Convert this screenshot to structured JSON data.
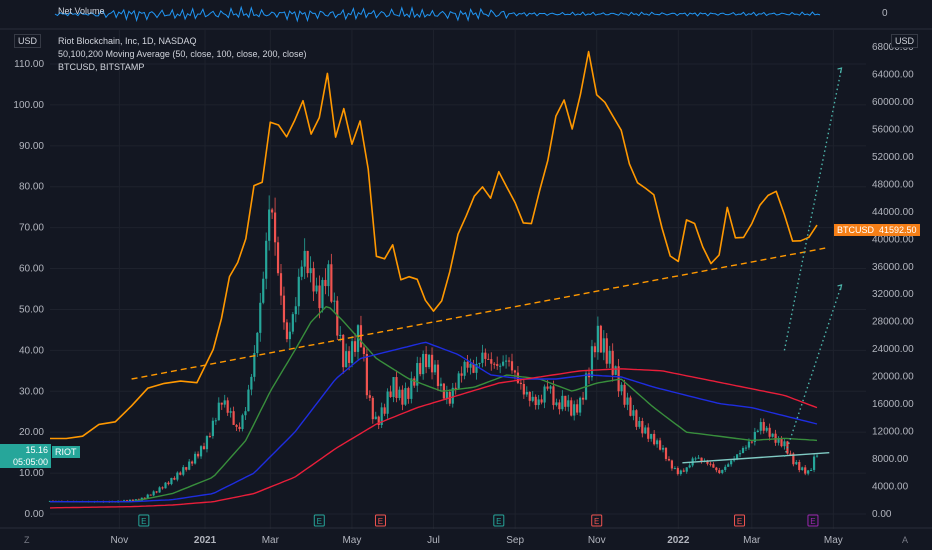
{
  "net_volume": {
    "label": "Net Volume",
    "value": "0"
  },
  "legend": {
    "title": "Riot Blockchain, Inc, 1D, NASDAQ",
    "ma": "50,100,200 Moving Average (50, close, 100, close, 200, close)",
    "btc": "BTCUSD, BITSTAMP"
  },
  "left_unit": "USD",
  "right_unit": "USD",
  "riot_tag": {
    "symbol": "RIOT",
    "price": "15.16",
    "countdown": "05:05:00",
    "color": "#26a69a"
  },
  "btc_tag": {
    "symbol": "BTCUSD",
    "price": "41592.50",
    "color": "#f57f17"
  },
  "corner_left": "Z",
  "corner_right": "A",
  "chart_data": {
    "type": "line",
    "x_ticks": [
      "Nov",
      "2021",
      "Mar",
      "May",
      "Jul",
      "Sep",
      "Nov",
      "2022",
      "Mar",
      "May"
    ],
    "left_axis": {
      "ticks": [
        "0.00",
        "10.00",
        "20.00",
        "30.00",
        "40.00",
        "50.00",
        "60.00",
        "70.00",
        "80.00",
        "90.00",
        "100.00",
        "110.00"
      ],
      "range": [
        0,
        110
      ]
    },
    "right_axis": {
      "ticks": [
        "0.00",
        "4000.00",
        "8000.00",
        "12000.00",
        "16000.00",
        "20000.00",
        "24000.00",
        "28000.00",
        "32000.00",
        "36000.00",
        "40000.00",
        "44000.00",
        "48000.00",
        "52000.00",
        "56000.00",
        "60000.00",
        "64000.00",
        "68000.00"
      ],
      "range": [
        0,
        68000
      ]
    },
    "event_markers": [
      {
        "x": 0.115,
        "label": "E",
        "color": "#26a69a"
      },
      {
        "x": 0.33,
        "label": "E",
        "color": "#26a69a"
      },
      {
        "x": 0.405,
        "label": "E",
        "color": "#ef5350"
      },
      {
        "x": 0.55,
        "label": "E",
        "color": "#26a69a"
      },
      {
        "x": 0.67,
        "label": "E",
        "color": "#ef5350"
      },
      {
        "x": 0.845,
        "label": "E",
        "color": "#ef5350"
      },
      {
        "x": 0.935,
        "label": "E",
        "color": "#9c27b0"
      }
    ],
    "btc_series": {
      "name": "BTCUSD",
      "color": "#ff9800",
      "t": [
        0,
        0.02,
        0.04,
        0.06,
        0.08,
        0.1,
        0.12,
        0.14,
        0.16,
        0.18,
        0.2,
        0.21,
        0.22,
        0.23,
        0.24,
        0.25,
        0.26,
        0.27,
        0.28,
        0.29,
        0.3,
        0.31,
        0.32,
        0.33,
        0.34,
        0.35,
        0.36,
        0.37,
        0.38,
        0.39,
        0.4,
        0.41,
        0.42,
        0.43,
        0.44,
        0.45,
        0.46,
        0.47,
        0.48,
        0.49,
        0.5,
        0.51,
        0.52,
        0.53,
        0.54,
        0.55,
        0.56,
        0.57,
        0.58,
        0.59,
        0.6,
        0.61,
        0.62,
        0.63,
        0.64,
        0.65,
        0.66,
        0.67,
        0.68,
        0.69,
        0.7,
        0.71,
        0.72,
        0.73,
        0.74,
        0.75,
        0.76,
        0.77,
        0.78,
        0.79,
        0.8,
        0.81,
        0.82,
        0.83,
        0.84,
        0.85,
        0.86,
        0.87,
        0.88,
        0.89,
        0.9,
        0.91,
        0.92,
        0.93,
        0.94
      ],
      "v": [
        11000,
        10900,
        11500,
        12800,
        13700,
        15500,
        18500,
        19000,
        19200,
        19400,
        23500,
        29000,
        34000,
        37000,
        40000,
        47500,
        49000,
        56000,
        57800,
        54000,
        58000,
        60000,
        55000,
        58500,
        63000,
        56000,
        58000,
        54500,
        57000,
        50000,
        38000,
        36500,
        40000,
        33500,
        35000,
        34000,
        31000,
        29900,
        30500,
        36000,
        40000,
        44000,
        46000,
        47500,
        46500,
        49000,
        48500,
        44500,
        43000,
        42000,
        47000,
        52000,
        57000,
        61500,
        55000,
        62000,
        66800,
        61000,
        60500,
        57000,
        57000,
        50000,
        49000,
        47000,
        46500,
        42000,
        37000,
        37500,
        42000,
        43000,
        38500,
        36500,
        38000,
        44000,
        41000,
        39500,
        43000,
        44500,
        46500,
        47300,
        43000,
        40500,
        39000,
        41000,
        41592
      ]
    },
    "riot_series": {
      "name": "RIOT",
      "t": [
        0,
        0.04,
        0.08,
        0.11,
        0.13,
        0.15,
        0.17,
        0.19,
        0.2,
        0.21,
        0.22,
        0.23,
        0.24,
        0.25,
        0.26,
        0.27,
        0.28,
        0.29,
        0.3,
        0.31,
        0.32,
        0.33,
        0.34,
        0.35,
        0.36,
        0.37,
        0.38,
        0.39,
        0.4,
        0.41,
        0.42,
        0.43,
        0.44,
        0.45,
        0.46,
        0.47,
        0.48,
        0.49,
        0.5,
        0.51,
        0.52,
        0.53,
        0.54,
        0.55,
        0.56,
        0.57,
        0.58,
        0.59,
        0.6,
        0.61,
        0.62,
        0.63,
        0.64,
        0.65,
        0.66,
        0.67,
        0.68,
        0.69,
        0.7,
        0.71,
        0.72,
        0.73,
        0.74,
        0.75,
        0.76,
        0.77,
        0.78,
        0.79,
        0.8,
        0.81,
        0.82,
        0.83,
        0.84,
        0.85,
        0.86,
        0.87,
        0.88,
        0.89,
        0.9,
        0.91,
        0.92,
        0.93,
        0.94
      ],
      "v": [
        3.2,
        3.0,
        3.0,
        3.5,
        5.5,
        8.5,
        12,
        17,
        22,
        28,
        25,
        20,
        26,
        38,
        55,
        78,
        58,
        42,
        50,
        64,
        58,
        52,
        60,
        48,
        37,
        40,
        45,
        28,
        22,
        26,
        32,
        28,
        30,
        35,
        38,
        36,
        30,
        28,
        33,
        37,
        35,
        39,
        37,
        36,
        38,
        34,
        30,
        28,
        27,
        32,
        26,
        28,
        25,
        27,
        35,
        44,
        40,
        36,
        30,
        26,
        22,
        20,
        18,
        16,
        12,
        10,
        11,
        14,
        13,
        12,
        10,
        12,
        14,
        16,
        18,
        22,
        20,
        18,
        17,
        13,
        11,
        10,
        15.16
      ]
    },
    "ma_series": [
      {
        "name": "MA 50",
        "color": "#388e3c",
        "t": [
          0,
          0.1,
          0.15,
          0.2,
          0.24,
          0.27,
          0.3,
          0.32,
          0.34,
          0.36,
          0.4,
          0.44,
          0.48,
          0.52,
          0.56,
          0.6,
          0.64,
          0.67,
          0.7,
          0.74,
          0.78,
          0.82,
          0.86,
          0.9,
          0.94
        ],
        "v": [
          3,
          3,
          5,
          9,
          18,
          30,
          40,
          47,
          51,
          47,
          38,
          33,
          30,
          31,
          34,
          33,
          30,
          32,
          33,
          26,
          20,
          19,
          18,
          18.5,
          18
        ]
      },
      {
        "name": "MA 100",
        "color": "#1e2de0",
        "t": [
          0,
          0.1,
          0.15,
          0.2,
          0.25,
          0.3,
          0.35,
          0.38,
          0.42,
          0.46,
          0.5,
          0.54,
          0.58,
          0.62,
          0.66,
          0.7,
          0.74,
          0.78,
          0.82,
          0.86,
          0.9,
          0.94
        ],
        "v": [
          3,
          3,
          3.5,
          5,
          10,
          20,
          33,
          38,
          40,
          42,
          39,
          34,
          33,
          33,
          34,
          33.5,
          31,
          29,
          27,
          26,
          24,
          22
        ]
      },
      {
        "name": "MA 200",
        "color": "#e91e3a",
        "t": [
          0,
          0.1,
          0.15,
          0.2,
          0.25,
          0.3,
          0.35,
          0.4,
          0.45,
          0.5,
          0.55,
          0.6,
          0.65,
          0.7,
          0.75,
          0.8,
          0.85,
          0.9,
          0.94
        ],
        "v": [
          1.5,
          1.8,
          2.2,
          3,
          5,
          9,
          16,
          22,
          26,
          29,
          32,
          33.5,
          35,
          35.5,
          35,
          33,
          31,
          29,
          26
        ]
      }
    ],
    "annotations": [
      {
        "type": "trendline",
        "style": "dashed",
        "color": "#ff9800",
        "from": {
          "t": 0.1,
          "v": 33
        },
        "to": {
          "t": 0.95,
          "v": 65
        }
      },
      {
        "type": "trendline",
        "style": "solid",
        "color": "#80cbc4",
        "from": {
          "t": 0.775,
          "v": 12.5
        },
        "to": {
          "t": 0.955,
          "v": 15
        }
      },
      {
        "type": "projection",
        "style": "dotted",
        "color": "#4db6ac",
        "from": {
          "t": 0.9,
          "v": 40
        },
        "to": {
          "t": 0.97,
          "v": 109
        }
      },
      {
        "type": "projection",
        "style": "dotted",
        "color": "#4db6ac",
        "from": {
          "t": 0.9,
          "v": 14
        },
        "to": {
          "t": 0.97,
          "v": 56
        }
      }
    ]
  }
}
